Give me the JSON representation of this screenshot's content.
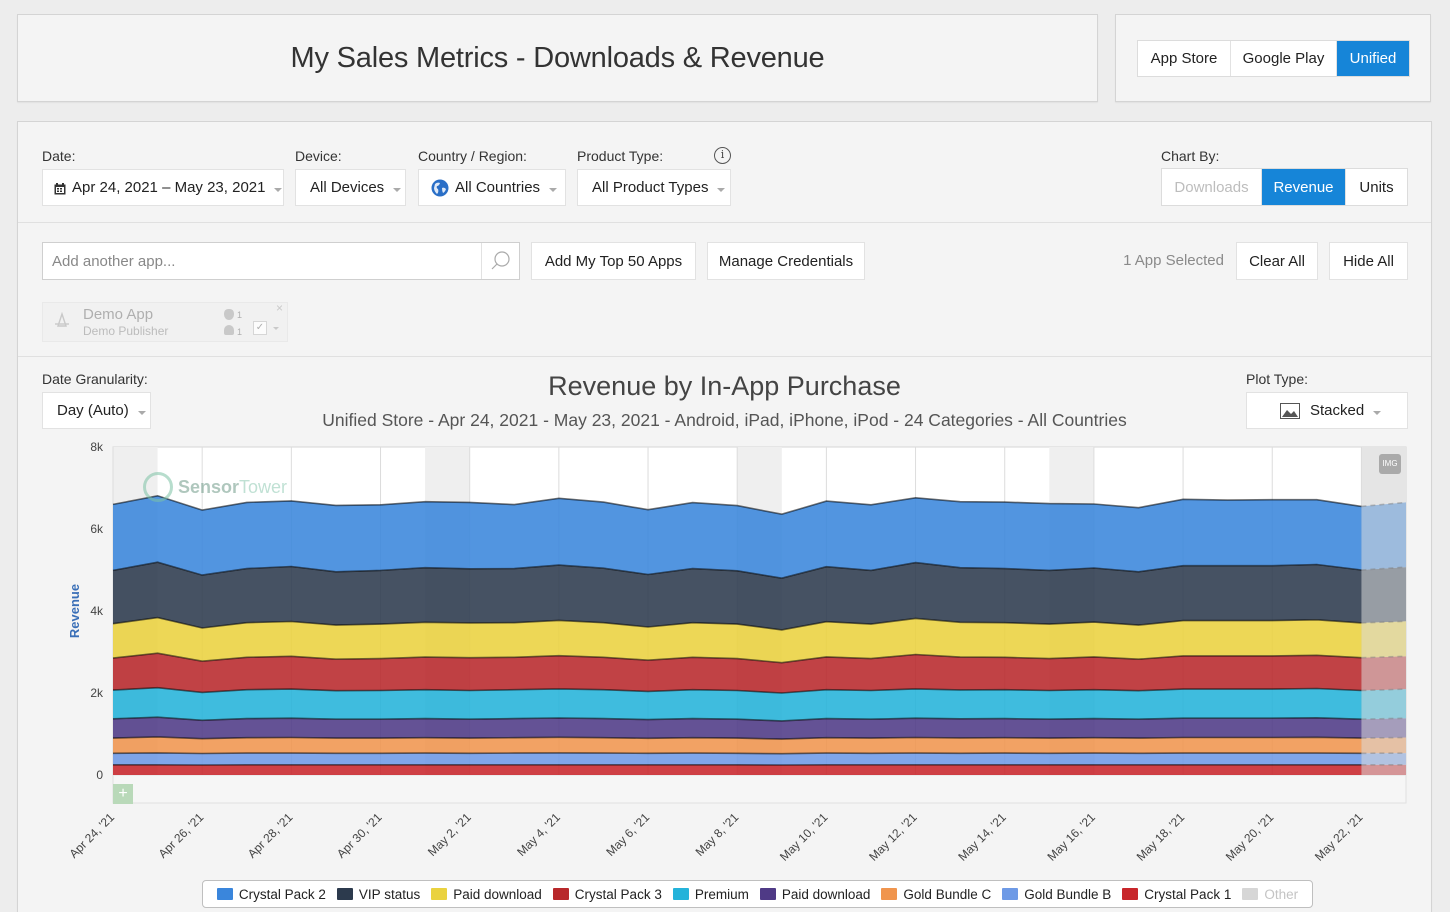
{
  "header": {
    "title": "My Sales Metrics - Downloads & Revenue"
  },
  "store_switch": {
    "options": [
      "App Store",
      "Google Play",
      "Unified"
    ],
    "selected": "Unified"
  },
  "filters": {
    "date": {
      "label": "Date:",
      "value": "Apr 24, 2021 – May 23, 2021"
    },
    "device": {
      "label": "Device:",
      "value": "All Devices"
    },
    "country": {
      "label": "Country / Region:",
      "value": "All Countries"
    },
    "product_type": {
      "label": "Product Type:",
      "value": "All Product Types",
      "info_icon": "info-icon"
    },
    "chart_by": {
      "label": "Chart By:",
      "options": [
        "Downloads",
        "Revenue",
        "Units"
      ],
      "selected": "Revenue",
      "disabled": "Downloads"
    }
  },
  "apps_bar": {
    "search_placeholder": "Add another app...",
    "add_top_label": "Add My Top 50 Apps",
    "manage_label": "Manage Credentials",
    "selected_text": "1 App Selected",
    "clear_label": "Clear All",
    "hide_label": "Hide All",
    "chip": {
      "name": "Demo App",
      "publisher": "Demo Publisher",
      "ios_count": "1",
      "android_count": "1"
    }
  },
  "chart_controls": {
    "granularity_label": "Date Granularity:",
    "granularity_value": "Day (Auto)",
    "plot_type_label": "Plot Type:",
    "plot_type_value": "Stacked",
    "img_badge": "IMG",
    "watermark_sensor": "Sensor",
    "watermark_tower": "Tower"
  },
  "chart_data": {
    "type": "area",
    "stacked": true,
    "title": "Revenue by In-App Purchase",
    "subtitle": "Unified Store - Apr 24, 2021 - May 23, 2021 - Android, iPad, iPhone, iPod - 24 Categories - All Countries",
    "ylabel": "Revenue",
    "ylim": [
      0,
      8000
    ],
    "yticks": [
      "0",
      "2k",
      "4k",
      "6k",
      "8k"
    ],
    "x": [
      "Apr 24",
      "Apr 25",
      "Apr 26",
      "Apr 27",
      "Apr 28",
      "Apr 29",
      "Apr 30",
      "May 1",
      "May 2",
      "May 3",
      "May 4",
      "May 5",
      "May 6",
      "May 7",
      "May 8",
      "May 9",
      "May 10",
      "May 11",
      "May 12",
      "May 13",
      "May 14",
      "May 15",
      "May 16",
      "May 17",
      "May 18",
      "May 19",
      "May 20",
      "May 21",
      "May 22",
      "May 23"
    ],
    "xtick_labels": [
      "Apr 24, '21",
      "Apr 26, '21",
      "Apr 28, '21",
      "Apr 30, '21",
      "May 2, '21",
      "May 4, '21",
      "May 6, '21",
      "May 8, '21",
      "May 10, '21",
      "May 12, '21",
      "May 14, '21",
      "May 16, '21",
      "May 18, '21",
      "May 20, '21",
      "May 22, '21"
    ],
    "projected_from": "May 22",
    "series": [
      {
        "name": "Crystal Pack 1",
        "color": "#c8262b",
        "values": [
          250,
          250,
          245,
          250,
          250,
          250,
          250,
          250,
          250,
          250,
          250,
          250,
          250,
          250,
          250,
          245,
          250,
          250,
          250,
          250,
          250,
          250,
          250,
          250,
          250,
          250,
          250,
          250,
          250,
          250
        ]
      },
      {
        "name": "Gold Bundle B",
        "color": "#6e9ae6",
        "values": [
          280,
          290,
          280,
          285,
          285,
          280,
          280,
          285,
          280,
          285,
          290,
          285,
          280,
          285,
          280,
          275,
          285,
          280,
          285,
          280,
          285,
          280,
          285,
          280,
          285,
          285,
          285,
          285,
          280,
          285
        ]
      },
      {
        "name": "Gold Bundle C",
        "color": "#f0954e",
        "values": [
          370,
          390,
          360,
          375,
          380,
          370,
          370,
          375,
          370,
          375,
          380,
          375,
          365,
          375,
          370,
          355,
          375,
          370,
          380,
          375,
          375,
          370,
          375,
          370,
          380,
          380,
          380,
          385,
          370,
          380
        ]
      },
      {
        "name": "Paid download",
        "color": "#4f3a86",
        "values": [
          470,
          480,
          450,
          465,
          470,
          460,
          460,
          465,
          460,
          465,
          470,
          465,
          455,
          465,
          460,
          445,
          465,
          460,
          470,
          465,
          465,
          460,
          465,
          460,
          470,
          470,
          470,
          475,
          460,
          470
        ]
      },
      {
        "name": "Premium",
        "color": "#24b3da",
        "values": [
          700,
          720,
          680,
          705,
          710,
          695,
          700,
          705,
          700,
          705,
          710,
          705,
          690,
          705,
          700,
          680,
          705,
          700,
          715,
          705,
          705,
          700,
          705,
          695,
          710,
          710,
          710,
          715,
          700,
          710
        ]
      },
      {
        "name": "Crystal Pack 3",
        "color": "#b8282b",
        "values": [
          780,
          840,
          760,
          790,
          800,
          770,
          780,
          795,
          800,
          790,
          810,
          790,
          760,
          790,
          780,
          740,
          800,
          780,
          840,
          800,
          790,
          780,
          800,
          770,
          810,
          810,
          810,
          810,
          800,
          800
        ]
      },
      {
        "name": "Paid download",
        "color": "#ead23f",
        "values": [
          840,
          870,
          810,
          845,
          850,
          830,
          840,
          850,
          850,
          845,
          860,
          845,
          810,
          845,
          840,
          800,
          860,
          840,
          880,
          850,
          845,
          840,
          850,
          830,
          860,
          860,
          860,
          865,
          850,
          855
        ]
      },
      {
        "name": "VIP status",
        "color": "#2c3a4d",
        "values": [
          1300,
          1350,
          1290,
          1320,
          1340,
          1300,
          1310,
          1330,
          1320,
          1320,
          1350,
          1330,
          1280,
          1320,
          1300,
          1260,
          1340,
          1310,
          1360,
          1330,
          1320,
          1310,
          1320,
          1300,
          1340,
          1340,
          1340,
          1350,
          1290,
          1320
        ]
      },
      {
        "name": "Crystal Pack 2",
        "color": "#3a86dc",
        "values": [
          1610,
          1620,
          1585,
          1615,
          1600,
          1620,
          1600,
          1610,
          1620,
          1560,
          1630,
          1610,
          1580,
          1610,
          1590,
          1560,
          1600,
          1600,
          1580,
          1610,
          1620,
          1630,
          1560,
          1565,
          1620,
          1600,
          1610,
          1580,
          1550,
          1580
        ]
      }
    ],
    "legend": [
      "Crystal Pack 2",
      "VIP status",
      "Paid download",
      "Crystal Pack 3",
      "Premium",
      "Paid download",
      "Gold Bundle C",
      "Gold Bundle B",
      "Crystal Pack 1",
      "Other"
    ],
    "legend_colors": [
      "#3a86dc",
      "#2c3a4d",
      "#ead23f",
      "#b8282b",
      "#24b3da",
      "#4f3a86",
      "#f0954e",
      "#6e9ae6",
      "#c8262b",
      "#d6d6d6"
    ],
    "legend_disabled": "Other",
    "legend_position": "bottom"
  }
}
